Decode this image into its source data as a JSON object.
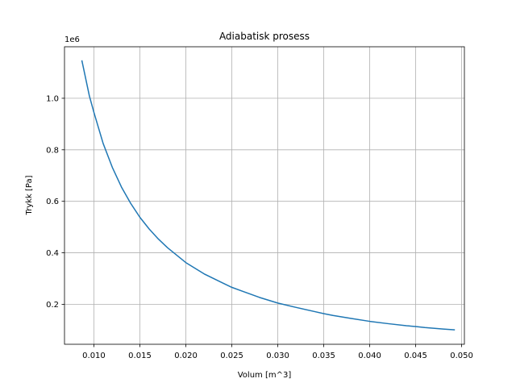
{
  "chart_data": {
    "type": "line",
    "title": "Adiabatisk prosess",
    "xlabel": "Volum [m^3]",
    "ylabel": "Trykk [Pa]",
    "y_offset_text": "1e6",
    "xlim": [
      0.0068,
      0.0503
    ],
    "ylim": [
      45000,
      1200000
    ],
    "x_ticks": [
      0.01,
      0.015,
      0.02,
      0.025,
      0.03,
      0.035,
      0.04,
      0.045,
      0.05
    ],
    "x_tick_labels": [
      "0.010",
      "0.015",
      "0.020",
      "0.025",
      "0.030",
      "0.035",
      "0.040",
      "0.045",
      "0.050"
    ],
    "y_ticks": [
      200000,
      400000,
      600000,
      800000,
      1000000
    ],
    "y_tick_labels": [
      "0.2",
      "0.4",
      "0.6",
      "0.8",
      "1.0"
    ],
    "grid": true,
    "series": [
      {
        "color": "#1f77b4",
        "x": [
          0.0087,
          0.0095,
          0.01,
          0.011,
          0.012,
          0.013,
          0.014,
          0.015,
          0.016,
          0.017,
          0.018,
          0.019,
          0.02,
          0.022,
          0.024,
          0.025,
          0.026,
          0.028,
          0.03,
          0.032,
          0.034,
          0.035,
          0.036,
          0.038,
          0.04,
          0.042,
          0.044,
          0.045,
          0.046,
          0.048,
          0.0492
        ],
        "y": [
          1145000,
          1010000,
          945000,
          825000,
          732000,
          655000,
          592000,
          538000,
          493000,
          454000,
          420000,
          391000,
          362000,
          318000,
          283000,
          266000,
          253000,
          227000,
          205000,
          188000,
          172000,
          164000,
          157000,
          145000,
          134000,
          125000,
          117000,
          114000,
          110000,
          104000,
          101000
        ]
      }
    ]
  }
}
